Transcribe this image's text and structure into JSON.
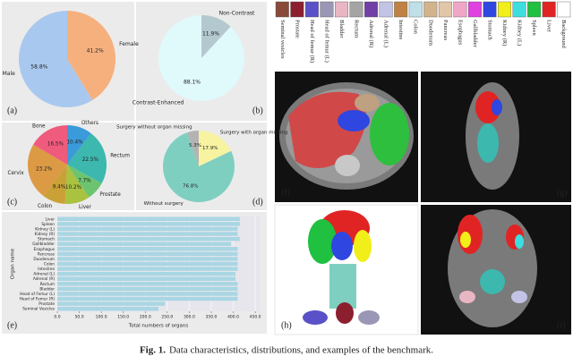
{
  "panels": [
    "(a)",
    "(b)",
    "(c)",
    "(d)",
    "(e)",
    "(f)",
    "(g)",
    "(h)",
    "(i)"
  ],
  "chart_data": [
    {
      "type": "pie",
      "categories": [
        "Female",
        "Male"
      ],
      "values": [
        41.2,
        58.8
      ],
      "value_labels": [
        "41.2%",
        "58.8%"
      ],
      "colors": [
        "#f6b07e",
        "#a9c8ef"
      ]
    },
    {
      "type": "pie",
      "categories": [
        "Non-Contrast",
        "Contrast-Enhanced"
      ],
      "values": [
        11.9,
        88.1
      ],
      "value_labels": [
        "11.9%",
        "88.1%"
      ],
      "colors": [
        "#b4c9cf",
        "#e0f9fb"
      ]
    },
    {
      "type": "pie",
      "categories": [
        "Others",
        "Rectum",
        "Prostate",
        "Liver",
        "Colon",
        "Cervix",
        "Bone"
      ],
      "values": [
        10.4,
        22.5,
        7.7,
        10.2,
        9.4,
        23.2,
        16.5
      ],
      "value_labels": [
        "10.4%",
        "22.5%",
        "7.7%",
        "10.2%",
        "9.4%",
        "23.2%",
        "16.5%"
      ],
      "colors": [
        "#3b9ad9",
        "#3cb8ae",
        "#6cc46f",
        "#a9c23f",
        "#c9a136",
        "#dd9a45",
        "#ef5b7d"
      ]
    },
    {
      "type": "pie",
      "categories": [
        "Surgery with organ missing",
        "Without surgery",
        "Surgery without organ missing"
      ],
      "values": [
        17.9,
        76.8,
        5.3
      ],
      "value_labels": [
        "17.9%",
        "76.8%",
        "5.3%"
      ],
      "colors": [
        "#f7f3a1",
        "#7fcfc0",
        "#b3b3b3"
      ]
    },
    {
      "type": "barh",
      "categories": [
        "Liver",
        "Spleen",
        "Kidney (L)",
        "Kidney (R)",
        "Stomach",
        "Gallbladder",
        "Esophagus",
        "Pancreas",
        "Duodenum",
        "Colon",
        "Intestine",
        "Adrenal (L)",
        "Adrenal (R)",
        "Rectum",
        "Bladder",
        "Head of Femur (L)",
        "Head of Femur (R)",
        "Prostate",
        "Seminal Vesicles"
      ],
      "values": [
        415,
        415,
        410,
        410,
        415,
        395,
        410,
        410,
        410,
        410,
        410,
        405,
        405,
        410,
        410,
        410,
        410,
        245,
        230
      ],
      "color": "#a9d6e3",
      "xlabel": "Total numbers of organs",
      "ylabel": "Organ name",
      "xlim": [
        0,
        460
      ],
      "xticks": [
        {
          "value": 0,
          "label": "0.0"
        },
        {
          "value": 50,
          "label": "50.0"
        },
        {
          "value": 100,
          "label": "100.0"
        },
        {
          "value": 150,
          "label": "150.0"
        },
        {
          "value": 200,
          "label": "200.0"
        },
        {
          "value": 250,
          "label": "250.0"
        },
        {
          "value": 300,
          "label": "300.0"
        },
        {
          "value": 350,
          "label": "350.0"
        },
        {
          "value": 400,
          "label": "400.0"
        },
        {
          "value": 450,
          "label": "450.0"
        }
      ],
      "grid": true
    }
  ],
  "legend": {
    "items": [
      {
        "name": "Seminal vesicles",
        "color": "#8a4a3a"
      },
      {
        "name": "Prostate",
        "color": "#8b1f2e"
      },
      {
        "name": "Head of femur (R)",
        "color": "#5a50c8"
      },
      {
        "name": "Head of femur (L)",
        "color": "#9a96b6"
      },
      {
        "name": "Bladder",
        "color": "#e9b6c3"
      },
      {
        "name": "Rectum",
        "color": "#a4a4a4"
      },
      {
        "name": "Adrenal (R)",
        "color": "#7040a6"
      },
      {
        "name": "Adrenal (L)",
        "color": "#c3c3e6"
      },
      {
        "name": "Intestine",
        "color": "#c08244"
      },
      {
        "name": "Colon",
        "color": "#bfe0e8"
      },
      {
        "name": "Duodenum",
        "color": "#d2b48c"
      },
      {
        "name": "Pancreas",
        "color": "#e2c6a8"
      },
      {
        "name": "Esophagus",
        "color": "#f0a6c6"
      },
      {
        "name": "Gallbladder",
        "color": "#e040e0"
      },
      {
        "name": "Stomach",
        "color": "#2f46e0"
      },
      {
        "name": "Kidney (R)",
        "color": "#f2ee1a"
      },
      {
        "name": "Kidney (L)",
        "color": "#3edede"
      },
      {
        "name": "Spleen",
        "color": "#20c040"
      },
      {
        "name": "Liver",
        "color": "#e02424"
      },
      {
        "name": "Background",
        "color": "#ffffff"
      }
    ]
  },
  "caption": {
    "label": "Fig. 1.",
    "text": "Data characteristics, distributions, and examples of the benchmark."
  }
}
